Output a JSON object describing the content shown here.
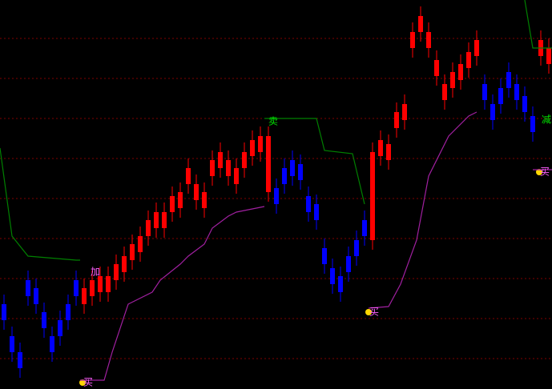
{
  "chart_data": {
    "type": "candlestick",
    "up_color": "#ff0000",
    "down_color": "#0000ff",
    "background": "#000000",
    "ylim": [
      0,
      486
    ],
    "yticks": [
      38,
      88,
      138,
      188,
      238,
      288,
      338,
      388,
      438
    ],
    "grid": true,
    "grid_color": "#800000",
    "open": [
      106,
      66,
      46,
      136,
      126,
      96,
      66,
      86,
      106,
      136,
      106,
      116,
      121,
      121,
      136,
      146,
      161,
      171,
      191,
      201,
      201,
      221,
      226,
      256,
      236,
      226,
      266,
      276,
      266,
      256,
      276,
      291,
      296,
      246,
      251,
      276,
      286,
      281,
      241,
      231,
      176,
      151,
      141,
      166,
      186,
      211,
      186,
      291,
      286,
      326,
      336,
      426,
      446,
      426,
      391,
      361,
      376,
      386,
      401,
      416,
      381,
      356,
      376,
      396,
      381,
      366,
      341,
      416,
      406
    ],
    "high": [
      118,
      78,
      58,
      148,
      138,
      108,
      78,
      98,
      118,
      148,
      138,
      148,
      153,
      153,
      168,
      178,
      193,
      203,
      223,
      233,
      233,
      253,
      258,
      288,
      268,
      258,
      298,
      308,
      298,
      288,
      308,
      323,
      328,
      328,
      263,
      288,
      298,
      293,
      253,
      243,
      188,
      163,
      153,
      178,
      198,
      223,
      308,
      323,
      318,
      358,
      368,
      458,
      478,
      458,
      423,
      393,
      408,
      418,
      433,
      448,
      393,
      368,
      388,
      408,
      393,
      378,
      353,
      448,
      438
    ],
    "low": [
      74,
      34,
      14,
      104,
      94,
      64,
      34,
      54,
      74,
      104,
      94,
      104,
      109,
      109,
      124,
      134,
      149,
      159,
      179,
      189,
      189,
      209,
      214,
      244,
      224,
      214,
      254,
      264,
      254,
      244,
      264,
      279,
      284,
      234,
      219,
      244,
      254,
      249,
      209,
      199,
      144,
      119,
      109,
      134,
      154,
      179,
      174,
      279,
      274,
      314,
      324,
      414,
      434,
      414,
      379,
      349,
      364,
      374,
      389,
      404,
      349,
      324,
      344,
      364,
      349,
      334,
      309,
      404,
      394
    ],
    "close": [
      86,
      46,
      26,
      116,
      106,
      76,
      46,
      66,
      86,
      116,
      126,
      136,
      141,
      141,
      156,
      166,
      181,
      191,
      211,
      221,
      221,
      241,
      246,
      276,
      256,
      246,
      286,
      296,
      286,
      276,
      296,
      311,
      316,
      316,
      231,
      256,
      266,
      261,
      221,
      211,
      156,
      131,
      121,
      146,
      166,
      191,
      296,
      311,
      306,
      346,
      356,
      446,
      466,
      446,
      411,
      381,
      396,
      406,
      421,
      436,
      361,
      336,
      356,
      376,
      361,
      346,
      321,
      436,
      426
    ],
    "lines": [
      {
        "color": "#008000",
        "x": [
          -0.5,
          1,
          3,
          9,
          9.5
        ],
        "values": [
          301,
          191,
          166,
          161,
          161
        ]
      },
      {
        "color": "#008000",
        "x": [
          32.5,
          39,
          40,
          43.5,
          45
        ],
        "values": [
          338,
          338,
          298,
          294,
          231
        ]
      },
      {
        "color": "#008000",
        "x": [
          65,
          66,
          68.5
        ],
        "values": [
          486,
          426,
          426
        ]
      },
      {
        "color": "#a020a0",
        "x": [
          9.5,
          12.5,
          13.5,
          15.5,
          18.5,
          19.5,
          22,
          23,
          25,
          26,
          28,
          29,
          32.5
        ],
        "values": [
          11,
          11,
          46,
          106,
          121,
          136,
          156,
          166,
          181,
          201,
          216,
          221,
          228
        ]
      },
      {
        "color": "#a020a0",
        "x": [
          45.5,
          48,
          49.5,
          51.5,
          53,
          55.5,
          58,
          59
        ],
        "values": [
          101,
          103,
          131,
          186,
          266,
          316,
          341,
          346
        ]
      },
      {
        "color": "#a020a0",
        "x": [
          66,
          68.5
        ],
        "values": [
          274,
          274
        ]
      }
    ],
    "annotations": [
      {
        "text": "卖",
        "color": "#00e000"
      },
      {
        "text": "减",
        "color": "#00e000"
      },
      {
        "text": "加",
        "color": "#ff60ff"
      },
      {
        "text": "买",
        "color": "#ff60ff"
      },
      {
        "text": "买",
        "color": "#ff60ff"
      },
      {
        "text": "买",
        "color": "#ff60ff"
      }
    ]
  }
}
